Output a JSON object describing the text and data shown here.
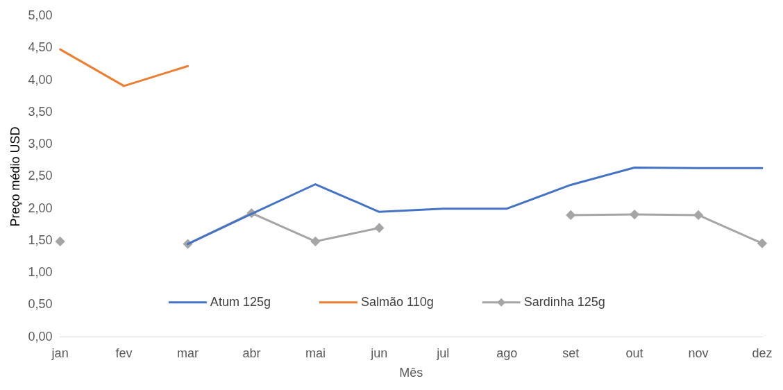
{
  "chart_data": {
    "type": "line",
    "xlabel": "Mês",
    "ylabel": "Preço médio USD",
    "categories": [
      "jan",
      "fev",
      "mar",
      "abr",
      "mai",
      "jun",
      "jul",
      "ago",
      "set",
      "out",
      "nov",
      "dez"
    ],
    "series": [
      {
        "name": "Atum 125g",
        "color": "#4472c4",
        "marker": "none",
        "values": [
          null,
          null,
          1.45,
          1.92,
          2.38,
          1.95,
          2.0,
          2.0,
          2.37,
          2.64,
          2.63,
          2.63
        ]
      },
      {
        "name": "Salmão 110g",
        "color": "#ed7d31",
        "marker": "none",
        "values": [
          4.48,
          3.91,
          4.22,
          null,
          null,
          null,
          null,
          null,
          null,
          null,
          null,
          null
        ]
      },
      {
        "name": "Sardinha 125g",
        "color": "#a5a5a5",
        "marker": "diamond",
        "values": [
          1.49,
          null,
          1.45,
          1.93,
          1.49,
          1.7,
          null,
          null,
          1.9,
          1.91,
          1.9,
          1.46
        ]
      }
    ],
    "ylim": [
      0,
      5
    ],
    "yticks": [
      {
        "value": 0,
        "label": "0,00"
      },
      {
        "value": 0.5,
        "label": "0,50"
      },
      {
        "value": 1,
        "label": "1,00"
      },
      {
        "value": 1.5,
        "label": "1,50"
      },
      {
        "value": 2,
        "label": "2,00"
      },
      {
        "value": 2.5,
        "label": "2,50"
      },
      {
        "value": 3,
        "label": "3,00"
      },
      {
        "value": 3.5,
        "label": "3,50"
      },
      {
        "value": 4,
        "label": "4,00"
      },
      {
        "value": 4.5,
        "label": "4,50"
      },
      {
        "value": 5,
        "label": "5,00"
      }
    ],
    "grid": false,
    "legend": "bottom",
    "line_style": "solid"
  }
}
